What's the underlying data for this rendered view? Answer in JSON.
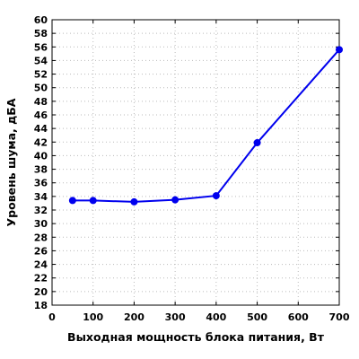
{
  "chart_data": {
    "type": "line",
    "xlabel": "Выходная мощность блока питания, Вт",
    "ylabel": "Уровень шума, дБА",
    "xlim": [
      0,
      700
    ],
    "ylim": [
      18,
      60
    ],
    "x_ticks": [
      "0",
      "100",
      "200",
      "300",
      "400",
      "500",
      "600",
      "700"
    ],
    "y_ticks": [
      "18",
      "20",
      "22",
      "24",
      "26",
      "28",
      "30",
      "32",
      "34",
      "36",
      "38",
      "40",
      "42",
      "44",
      "46",
      "48",
      "50",
      "52",
      "54",
      "56",
      "58",
      "60"
    ],
    "grid": true,
    "legend": "none",
    "series": [
      {
        "x": [
          50,
          100,
          200,
          300,
          400,
          500,
          700
        ],
        "y": [
          33.4,
          33.4,
          33.2,
          33.5,
          34.1,
          41.9,
          55.6
        ],
        "color": "#0000ee",
        "marker": "circle"
      }
    ]
  }
}
